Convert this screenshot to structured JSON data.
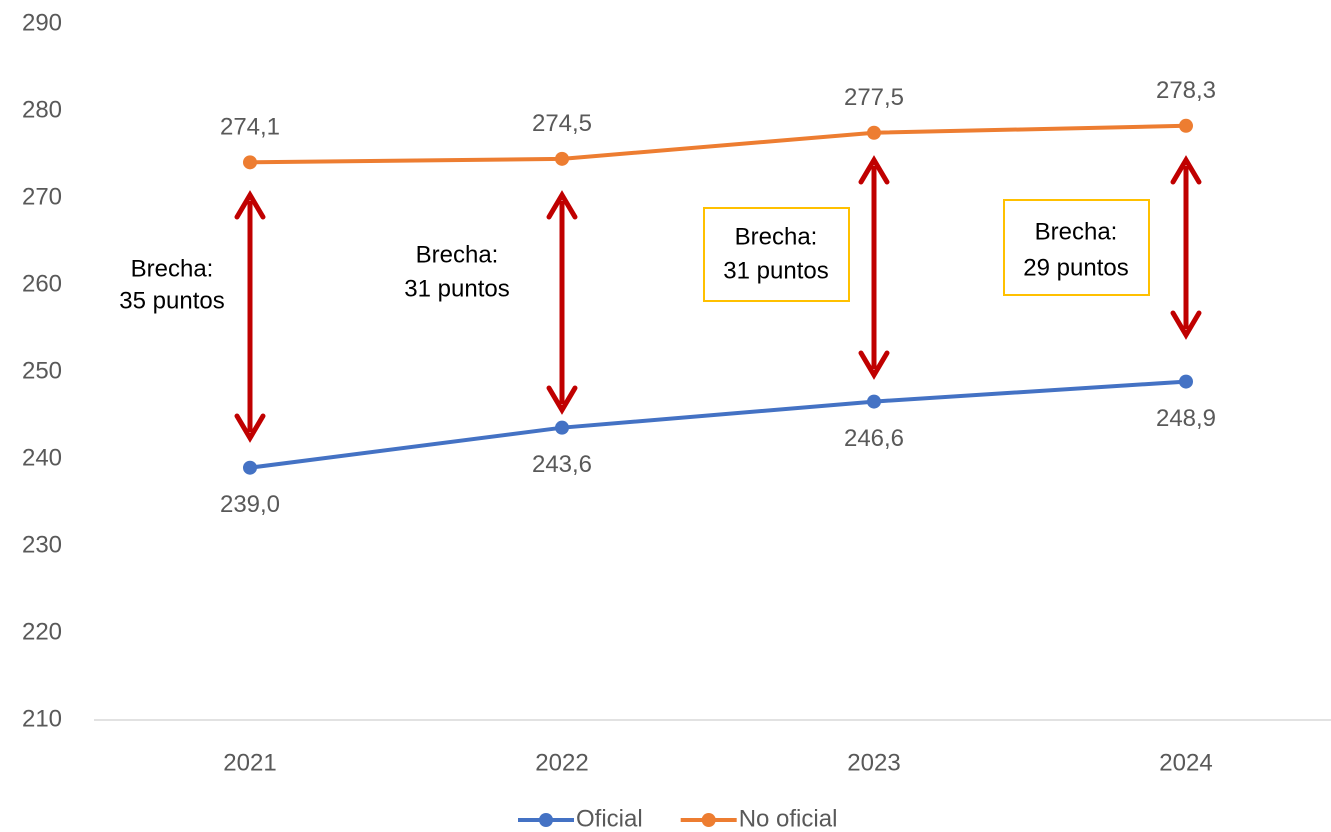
{
  "chart_data": {
    "type": "line",
    "categories": [
      "2021",
      "2022",
      "2023",
      "2024"
    ],
    "series": [
      {
        "name": "Oficial",
        "color": "#4472c4",
        "values": [
          239.0,
          243.6,
          246.6,
          248.9
        ],
        "value_labels": [
          "239,0",
          "243,6",
          "246,6",
          "248,9"
        ]
      },
      {
        "name": "No oficial",
        "color": "#ed7d31",
        "values": [
          274.1,
          274.5,
          277.5,
          278.3
        ],
        "value_labels": [
          "274,1",
          "274,5",
          "277,5",
          "278,3"
        ]
      }
    ],
    "ylim": [
      210,
      290
    ],
    "yticks": [
      210,
      220,
      230,
      240,
      250,
      260,
      270,
      280,
      290
    ],
    "grid": false,
    "legend": "bottom",
    "annotations": [
      {
        "lines": [
          "Brecha:",
          "35 puntos"
        ],
        "boxed": false
      },
      {
        "lines": [
          "Brecha:",
          "31 puntos"
        ],
        "boxed": false
      },
      {
        "lines": [
          "Brecha:",
          "31 puntos"
        ],
        "boxed": true
      },
      {
        "lines": [
          "Brecha:",
          "29 puntos"
        ],
        "boxed": true
      }
    ],
    "arrow_color": "#c00000",
    "box_color": "#ffc000"
  }
}
